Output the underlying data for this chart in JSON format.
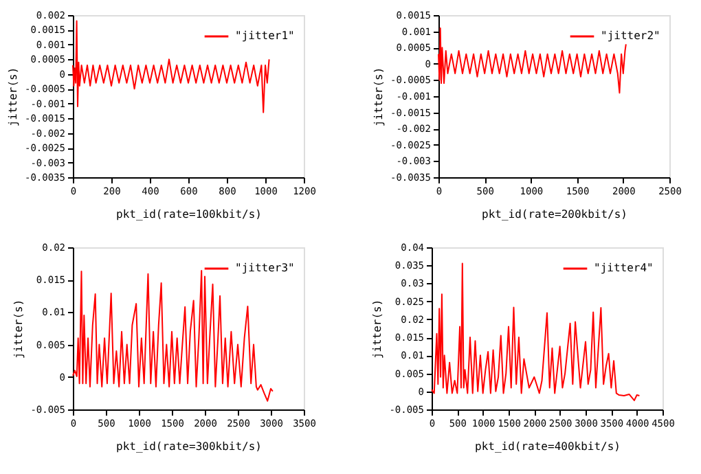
{
  "chart_data": [
    {
      "type": "line",
      "xlabel": "pkt_id(rate=100kbit/s)",
      "ylabel": "jitter(s)",
      "xlim": [
        0,
        1200
      ],
      "xticks": [
        0,
        200,
        400,
        600,
        800,
        1000,
        1200
      ],
      "ylim": [
        -0.0035,
        0.002
      ],
      "yticks": [
        -0.0035,
        -0.003,
        -0.0025,
        -0.002,
        -0.0015,
        -0.001,
        -0.0005,
        0,
        0.0005,
        0.001,
        0.0015,
        0.002
      ],
      "grid": false,
      "legend": "top right",
      "x": [
        0,
        5,
        10,
        15,
        20,
        25,
        30,
        35,
        45,
        60,
        75,
        90,
        105,
        120,
        140,
        160,
        180,
        200,
        220,
        240,
        260,
        280,
        300,
        320,
        340,
        360,
        380,
        400,
        420,
        440,
        460,
        480,
        500,
        520,
        540,
        560,
        580,
        600,
        620,
        640,
        660,
        680,
        700,
        720,
        740,
        760,
        780,
        800,
        820,
        840,
        860,
        880,
        900,
        920,
        940,
        960,
        980,
        990,
        1000,
        1010,
        1020
      ],
      "series": [
        {
          "name": "\"jitter1\"",
          "color": "#ff0000",
          "values": [
            0.0003,
            -0.0004,
            0.0002,
            -0.0003,
            0.0018,
            -0.0011,
            0.0004,
            -0.0004,
            0.0003,
            -0.0003,
            0.0003,
            -0.0004,
            0.0003,
            -0.0003,
            0.0003,
            -0.0003,
            0.0003,
            -0.0004,
            0.0003,
            -0.0003,
            0.0003,
            -0.0003,
            0.0003,
            -0.0005,
            0.0003,
            -0.0003,
            0.0003,
            -0.0003,
            0.0003,
            -0.0003,
            0.0003,
            -0.0003,
            0.0005,
            -0.0003,
            0.0003,
            -0.0003,
            0.0003,
            -0.0003,
            0.0003,
            -0.0003,
            0.0003,
            -0.0003,
            0.0003,
            -0.0003,
            0.0003,
            -0.0003,
            0.0003,
            -0.0003,
            0.0003,
            -0.0003,
            0.0003,
            -0.0003,
            0.0004,
            -0.0003,
            0.0003,
            -0.0004,
            0.0003,
            -0.0013,
            0.0003,
            -0.0003,
            0.0005
          ]
        }
      ]
    },
    {
      "type": "line",
      "xlabel": "pkt_id(rate=200kbit/s)",
      "ylabel": "jitter(s)",
      "xlim": [
        0,
        2500
      ],
      "xticks": [
        0,
        500,
        1000,
        1500,
        2000,
        2500
      ],
      "ylim": [
        -0.0035,
        0.0015
      ],
      "yticks": [
        -0.0035,
        -0.003,
        -0.0025,
        -0.002,
        -0.0015,
        -0.001,
        -0.0005,
        0,
        0.0005,
        0.001,
        0.0015
      ],
      "grid": false,
      "legend": "top right",
      "x": [
        0,
        10,
        20,
        30,
        40,
        60,
        80,
        100,
        140,
        180,
        220,
        260,
        300,
        340,
        380,
        420,
        460,
        500,
        540,
        580,
        620,
        660,
        700,
        740,
        780,
        820,
        860,
        900,
        940,
        980,
        1020,
        1060,
        1100,
        1140,
        1180,
        1220,
        1260,
        1300,
        1340,
        1380,
        1420,
        1460,
        1500,
        1540,
        1580,
        1620,
        1660,
        1700,
        1740,
        1780,
        1820,
        1860,
        1900,
        1940,
        1960,
        1980,
        2000,
        2020,
        2030
      ],
      "series": [
        {
          "name": "\"jitter2\"",
          "color": "#ff0000",
          "values": [
            0.0003,
            -0.0005,
            0.0011,
            -0.0006,
            0.0005,
            -0.0006,
            0.0004,
            -0.0003,
            0.0003,
            -0.0003,
            0.0004,
            -0.0003,
            0.0003,
            -0.0003,
            0.0003,
            -0.0004,
            0.0003,
            -0.0003,
            0.0004,
            -0.0003,
            0.0003,
            -0.0003,
            0.0003,
            -0.0004,
            0.0003,
            -0.0003,
            0.0003,
            -0.0003,
            0.0004,
            -0.0003,
            0.0003,
            -0.0003,
            0.0003,
            -0.0004,
            0.0003,
            -0.0003,
            0.0003,
            -0.0003,
            0.0004,
            -0.0003,
            0.0003,
            -0.0003,
            0.0003,
            -0.0004,
            0.0003,
            -0.0003,
            0.0003,
            -0.0003,
            0.0004,
            -0.0003,
            0.0003,
            -0.0003,
            0.0003,
            -0.0003,
            -0.0009,
            0.0003,
            -0.0003,
            0.0004,
            0.0006
          ]
        }
      ]
    },
    {
      "type": "line",
      "xlabel": "pkt_id(rate=300kbit/s)",
      "ylabel": "jitter(s)",
      "xlim": [
        0,
        3500
      ],
      "xticks": [
        0,
        500,
        1000,
        1500,
        2000,
        2500,
        3000,
        3500
      ],
      "ylim": [
        -0.005,
        0.02
      ],
      "yticks": [
        -0.005,
        0,
        0.005,
        0.01,
        0.015,
        0.02
      ],
      "grid": false,
      "legend": "top right",
      "x": [
        0,
        30,
        60,
        80,
        100,
        130,
        150,
        170,
        200,
        230,
        260,
        300,
        340,
        370,
        400,
        440,
        480,
        520,
        580,
        620,
        660,
        700,
        740,
        780,
        820,
        860,
        900,
        960,
        1000,
        1040,
        1080,
        1140,
        1180,
        1220,
        1260,
        1300,
        1340,
        1380,
        1420,
        1460,
        1500,
        1540,
        1580,
        1620,
        1660,
        1700,
        1740,
        1780,
        1830,
        1870,
        1910,
        1950,
        1975,
        2000,
        2040,
        2080,
        2120,
        2160,
        2200,
        2230,
        2270,
        2310,
        2350,
        2400,
        2450,
        2500,
        2550,
        2600,
        2650,
        2700,
        2740,
        2780,
        2800,
        2850,
        2900,
        2950,
        3000,
        3030
      ],
      "series": [
        {
          "name": "\"jitter3\"",
          "color": "#ff0000",
          "values": [
            0.0002,
            0.001,
            0.0001,
            0.006,
            -0.001,
            0.0163,
            -0.001,
            0.0095,
            -0.001,
            0.006,
            -0.0015,
            0.008,
            0.0128,
            -0.001,
            0.005,
            -0.0015,
            0.006,
            -0.001,
            0.0129,
            -0.001,
            0.004,
            -0.0015,
            0.007,
            -0.001,
            0.005,
            -0.001,
            0.008,
            0.0113,
            -0.0015,
            0.006,
            -0.001,
            0.0159,
            -0.001,
            0.007,
            -0.0015,
            0.008,
            0.0145,
            -0.001,
            0.005,
            -0.0015,
            0.007,
            -0.001,
            0.006,
            -0.001,
            0.005,
            0.0108,
            -0.001,
            0.007,
            0.0118,
            -0.0015,
            0.006,
            0.0164,
            -0.001,
            0.0155,
            -0.001,
            0.007,
            0.0143,
            -0.0015,
            0.006,
            0.0125,
            -0.001,
            0.006,
            -0.0015,
            0.007,
            -0.001,
            0.005,
            -0.0015,
            0.006,
            0.0109,
            -0.001,
            0.005,
            -0.0015,
            -0.002,
            -0.0012,
            -0.0025,
            -0.0037,
            -0.0018,
            -0.0022
          ]
        }
      ]
    },
    {
      "type": "line",
      "xlabel": "pkt_id(rate=400kbit/s)",
      "ylabel": "jitter(s)",
      "xlim": [
        0,
        4500
      ],
      "xticks": [
        0,
        500,
        1000,
        1500,
        2000,
        2500,
        3000,
        3500,
        4000,
        4500
      ],
      "ylim": [
        -0.005,
        0.04
      ],
      "yticks": [
        -0.005,
        0,
        0.005,
        0.01,
        0.015,
        0.02,
        0.025,
        0.03,
        0.035,
        0.04
      ],
      "grid": false,
      "legend": "top right",
      "x": [
        0,
        50,
        100,
        125,
        150,
        175,
        200,
        225,
        250,
        300,
        350,
        400,
        450,
        500,
        550,
        575,
        600,
        625,
        650,
        700,
        750,
        800,
        850,
        900,
        950,
        1000,
        1050,
        1100,
        1150,
        1200,
        1250,
        1300,
        1350,
        1400,
        1450,
        1500,
        1550,
        1600,
        1650,
        1700,
        1750,
        1800,
        1900,
        2000,
        2100,
        2150,
        2250,
        2300,
        2350,
        2400,
        2500,
        2550,
        2600,
        2700,
        2750,
        2800,
        2900,
        3000,
        3050,
        3100,
        3150,
        3200,
        3300,
        3350,
        3400,
        3450,
        3500,
        3550,
        3600,
        3650,
        3750,
        3850,
        3950,
        4000,
        4050
      ],
      "series": [
        {
          "name": "\"jitter4\"",
          "color": "#ff0000",
          "values": [
            0.0005,
            -0.0005,
            0.016,
            0.002,
            0.023,
            0.004,
            0.027,
            0.001,
            0.01,
            -0.0005,
            0.008,
            -0.0005,
            0.003,
            -0.0005,
            0.018,
            0.001,
            0.0355,
            0.001,
            0.006,
            -0.0005,
            0.015,
            -0.0005,
            0.014,
            0,
            0.01,
            -0.0005,
            0.006,
            0.011,
            -0.0005,
            0.0115,
            0,
            0.004,
            0.0155,
            -0.0005,
            0.005,
            0.018,
            0.001,
            0.0233,
            0.002,
            0.015,
            -0.0005,
            0.009,
            0.001,
            0.004,
            -0.0005,
            0.003,
            0.0218,
            0.001,
            0.012,
            -0.0005,
            0.0125,
            0.001,
            0.005,
            0.0189,
            0.002,
            0.0193,
            0.001,
            0.0138,
            0.002,
            0.006,
            0.022,
            0.001,
            0.0232,
            0.002,
            0.007,
            0.0105,
            0.001,
            0.0085,
            -0.0005,
            -0.001,
            -0.0012,
            -0.0008,
            -0.0025,
            -0.001,
            -0.0012
          ]
        }
      ]
    }
  ]
}
